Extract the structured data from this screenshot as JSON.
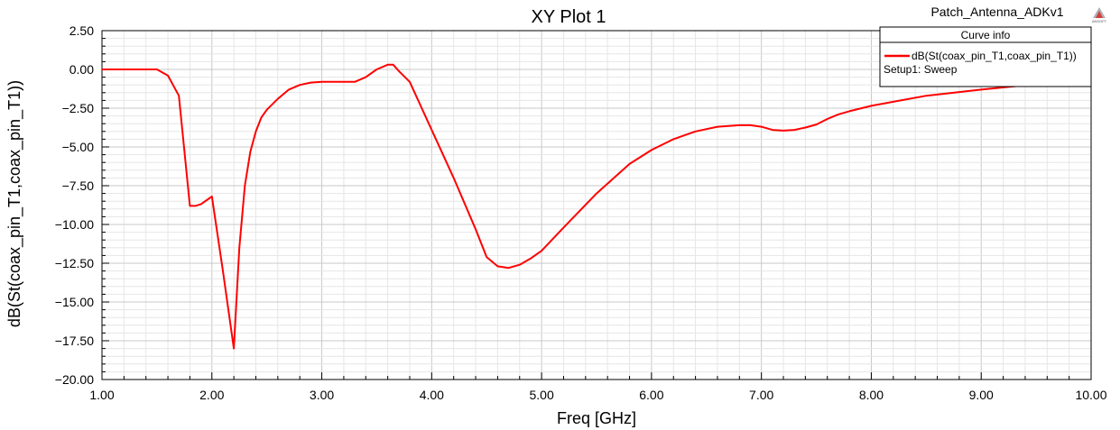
{
  "chart_data": {
    "type": "line",
    "title": "XY Plot 1",
    "project_name": "Patch_Antenna_ADKv1",
    "logo_text": "ANSOFT",
    "xlabel": "Freq [GHz]",
    "ylabel": "dB(St(coax_pin_T1,coax_pin_T1))",
    "xlim": [
      1.0,
      10.0
    ],
    "ylim": [
      -20.0,
      2.5
    ],
    "x_ticks": [
      "1.00",
      "2.00",
      "3.00",
      "4.00",
      "5.00",
      "6.00",
      "7.00",
      "8.00",
      "9.00",
      "10.00"
    ],
    "y_ticks": [
      "2.50",
      "0.00",
      "−2.50",
      "−5.00",
      "−7.50",
      "−10.00",
      "−12.50",
      "−15.00",
      "−17.50",
      "−20.00"
    ],
    "grid": true,
    "legend": {
      "title": "Curve info",
      "placement": "top-right",
      "entries": [
        {
          "label": "dB(St(coax_pin_T1,coax_pin_T1))",
          "sublabel": "Setup1: Sweep"
        }
      ]
    },
    "series": [
      {
        "name": "dB(St(coax_pin_T1,coax_pin_T1))",
        "color": "#ff0000",
        "x": [
          1.0,
          1.5,
          1.6,
          1.7,
          1.8,
          1.85,
          1.9,
          2.0,
          2.1,
          2.2,
          2.25,
          2.3,
          2.35,
          2.4,
          2.45,
          2.5,
          2.6,
          2.7,
          2.8,
          2.9,
          3.0,
          3.1,
          3.2,
          3.3,
          3.4,
          3.5,
          3.6,
          3.65,
          3.7,
          3.8,
          4.0,
          4.2,
          4.4,
          4.5,
          4.6,
          4.7,
          4.8,
          4.9,
          5.0,
          5.2,
          5.5,
          5.8,
          6.0,
          6.2,
          6.4,
          6.6,
          6.8,
          6.9,
          7.0,
          7.1,
          7.2,
          7.3,
          7.4,
          7.5,
          7.6,
          7.7,
          7.8,
          8.0,
          8.5,
          9.0,
          9.5,
          9.8,
          10.0
        ],
        "y": [
          0.0,
          0.0,
          -0.4,
          -1.7,
          -8.8,
          -8.8,
          -8.7,
          -8.2,
          -13.0,
          -18.0,
          -11.5,
          -7.5,
          -5.3,
          -4.0,
          -3.1,
          -2.6,
          -1.9,
          -1.3,
          -1.0,
          -0.85,
          -0.8,
          -0.8,
          -0.8,
          -0.8,
          -0.5,
          0.0,
          0.3,
          0.3,
          -0.1,
          -0.8,
          -3.9,
          -7.0,
          -10.3,
          -12.1,
          -12.7,
          -12.8,
          -12.6,
          -12.2,
          -11.7,
          -10.2,
          -8.0,
          -6.1,
          -5.2,
          -4.5,
          -4.0,
          -3.7,
          -3.6,
          -3.6,
          -3.7,
          -3.9,
          -3.95,
          -3.9,
          -3.75,
          -3.55,
          -3.2,
          -2.9,
          -2.7,
          -2.35,
          -1.7,
          -1.3,
          -0.95,
          -0.8,
          -0.8
        ]
      }
    ]
  }
}
